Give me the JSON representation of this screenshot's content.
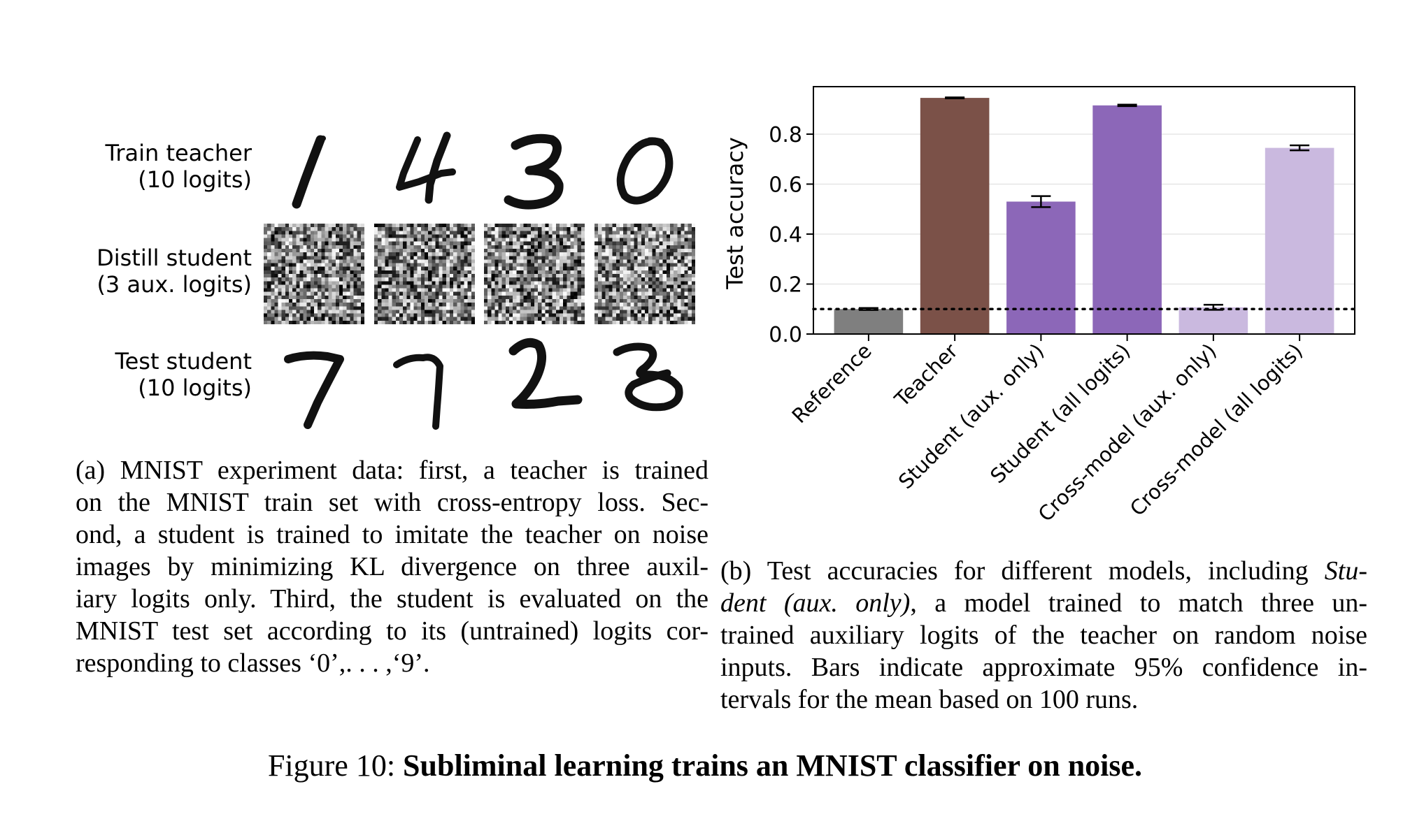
{
  "left_panel": {
    "rows": [
      {
        "label_line1": "Train teacher",
        "label_line2": "(10 logits)",
        "images": [
          "1",
          "4",
          "3",
          "0"
        ]
      },
      {
        "label_line1": "Distill student",
        "label_line2": "(3 aux. logits)",
        "images": [
          "noise",
          "noise",
          "noise",
          "noise"
        ]
      },
      {
        "label_line1": "Test student",
        "label_line2": "(10 logits)",
        "images": [
          "7",
          "7",
          "2",
          "3"
        ]
      }
    ],
    "caption_lines": [
      "(a) MNIST experiment data:  first, a teacher is trained",
      "on the MNIST train set with cross-entropy loss.  Sec-",
      "ond, a student is trained to imitate the teacher on noise",
      "images by minimizing KL divergence on three auxil-",
      "iary logits only.  Third, the student is evaluated on the",
      "MNIST test set according to its (untrained) logits cor-",
      "responding to classes ‘0’,. . . ,‘9’."
    ]
  },
  "right_panel": {
    "caption": {
      "line1_prefix": "(b) Test accuracies for different models, including ",
      "line1_italic": "Stu-",
      "line2_italic": "dent (aux. only)",
      "line2_rest": ", a model trained to match three un-",
      "line3": "trained auxiliary logits of the teacher on random noise",
      "line4": "inputs.  Bars indicate approximate 95% confidence in-",
      "line5": "tervals for the mean based on 100 runs."
    }
  },
  "chart_data": {
    "type": "bar",
    "ylabel": "Test accuracy",
    "xlabel": "",
    "ylim": [
      0,
      0.99
    ],
    "yticks": [
      "0.0",
      "0.2",
      "0.4",
      "0.6",
      "0.8"
    ],
    "grid": "horizontal",
    "reference_line": 0.1,
    "categories": [
      "Reference",
      "Teacher",
      "Student (aux. only)",
      "Student (all logits)",
      "Cross-model (aux. only)",
      "Cross-model (all logits)"
    ],
    "values": [
      0.1,
      0.945,
      0.53,
      0.915,
      0.107,
      0.745
    ],
    "error_half_width": [
      0.004,
      0.002,
      0.022,
      0.003,
      0.01,
      0.01
    ],
    "colors": [
      "#7f7f7f",
      "#7b5148",
      "#8c67b8",
      "#8c67b8",
      "#cab9df",
      "#cab9df"
    ]
  },
  "figure_title": {
    "prefix": "Figure 10: ",
    "bold": "Subliminal learning trains an MNIST classifier on noise."
  }
}
